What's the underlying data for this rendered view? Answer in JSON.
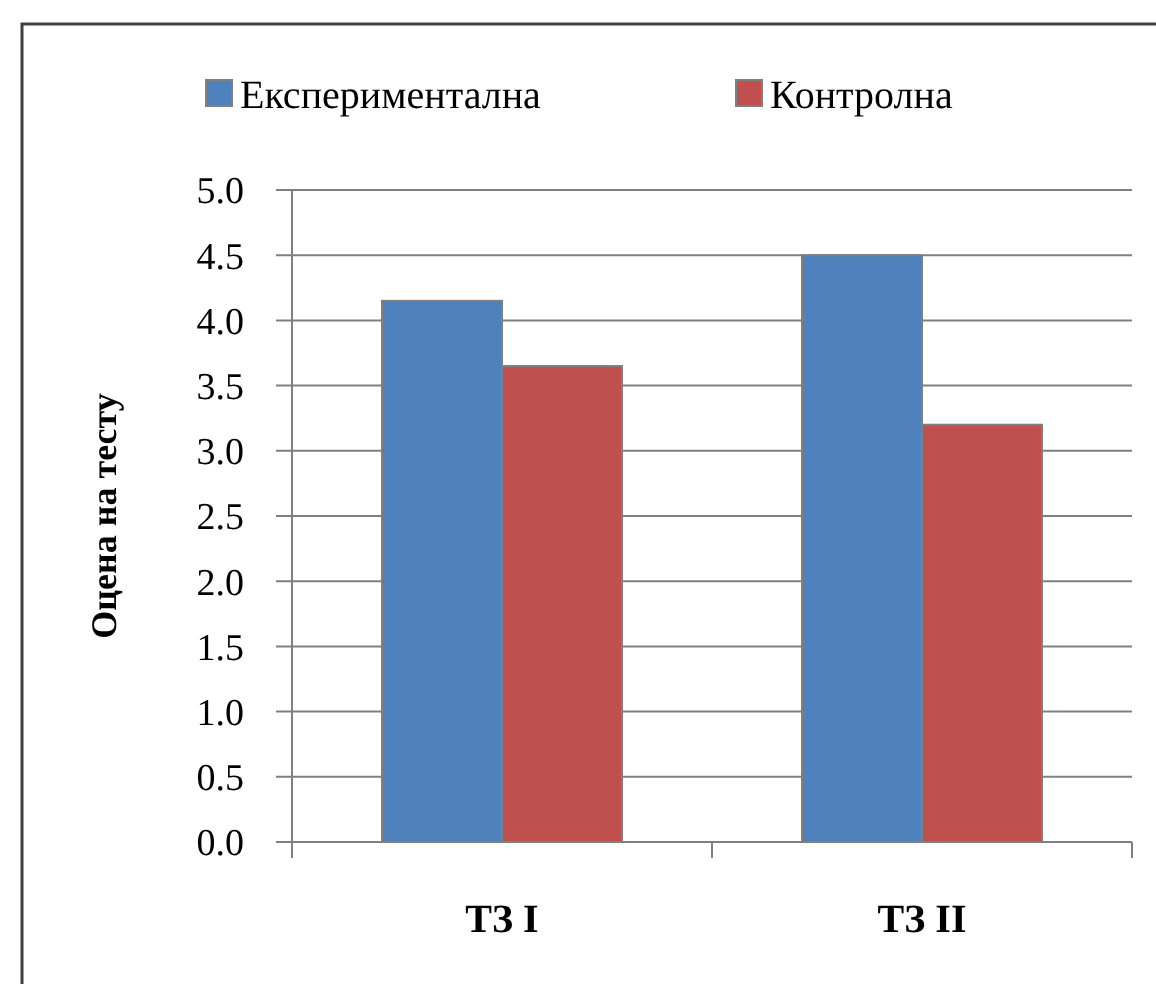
{
  "chart_data": {
    "type": "bar",
    "ylabel": "Оцена на тесту",
    "categories": [
      "ТЗ I",
      "ТЗ II"
    ],
    "series": [
      {
        "name": "Експериментална",
        "color": "#4f81bd",
        "values": [
          4.15,
          4.5
        ]
      },
      {
        "name": "Контролна",
        "color": "#c0504d",
        "values": [
          3.65,
          3.2
        ]
      }
    ],
    "ylim": [
      0,
      5
    ],
    "yticks": [
      {
        "value": 0,
        "label": "0.0"
      },
      {
        "value": 0.5,
        "label": "0.5"
      },
      {
        "value": 1,
        "label": "1.0"
      },
      {
        "value": 1.5,
        "label": "1.5"
      },
      {
        "value": 2,
        "label": "2.0"
      },
      {
        "value": 2.5,
        "label": "2.5"
      },
      {
        "value": 3,
        "label": "3.0"
      },
      {
        "value": 3.5,
        "label": "3.5"
      },
      {
        "value": 4,
        "label": "4.0"
      },
      {
        "value": 4.5,
        "label": "4.5"
      },
      {
        "value": 5,
        "label": "5.0"
      }
    ],
    "grid": "y",
    "legend": "top"
  }
}
